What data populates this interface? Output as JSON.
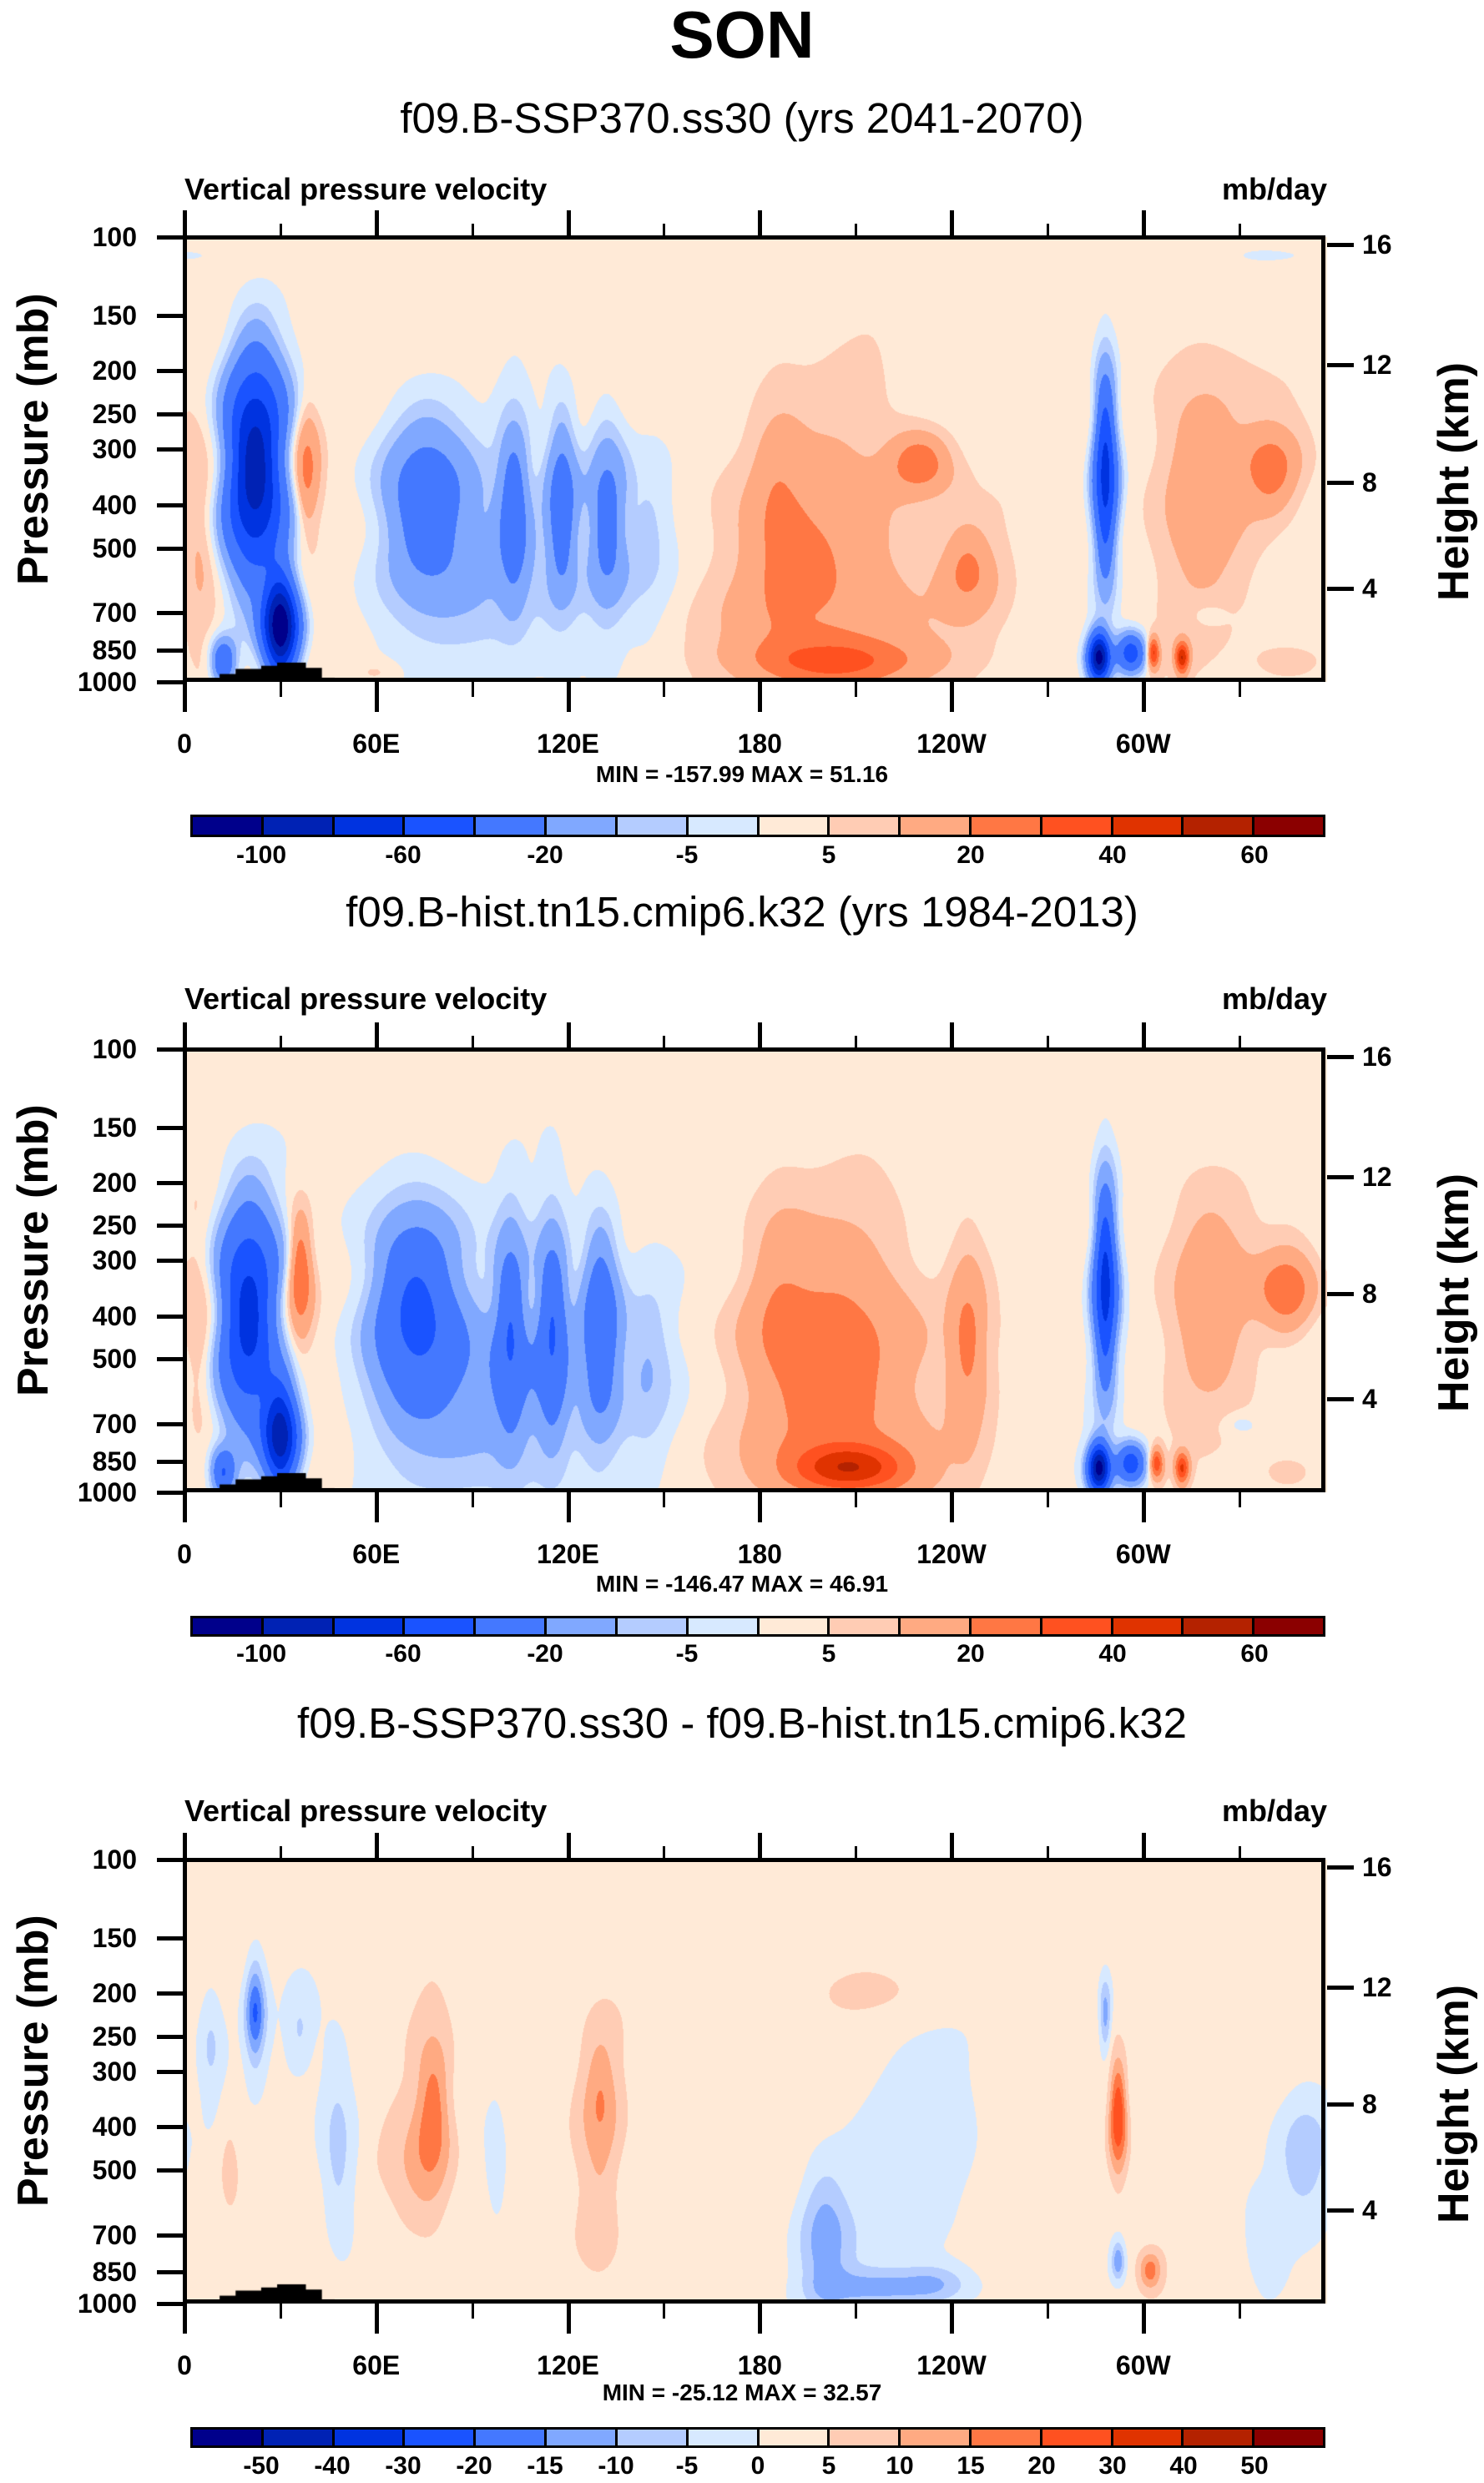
{
  "figure": {
    "title": "SON"
  },
  "colormaps": {
    "colors": [
      "#00008B",
      "#0022B4",
      "#0033E0",
      "#1A53FF",
      "#4478FF",
      "#80A8FF",
      "#B4CCFF",
      "#D7E9FF",
      "#FFEAD7",
      "#FFCCB4",
      "#FFAA82",
      "#FF7744",
      "#FF5120",
      "#E03300",
      "#B42200",
      "#8B0000"
    ],
    "land_color": "#000000"
  },
  "chart_data": [
    {
      "type": "heatmap",
      "panel": "top",
      "title": "f09.B-SSP370.ss30 (yrs 2041-2070)",
      "left_string": "Vertical pressure velocity",
      "right_string": "mb/day",
      "ylabel": "Pressure (mb)",
      "ylabel_right": "Height (km)",
      "x_range": [
        0,
        357.5
      ],
      "y_range_mb": [
        1000,
        100
      ],
      "y_scale": "log",
      "x_ticks": [
        {
          "lon": 0,
          "label": "0"
        },
        {
          "lon": 60,
          "label": "60E"
        },
        {
          "lon": 120,
          "label": "120E"
        },
        {
          "lon": 180,
          "label": "180"
        },
        {
          "lon": 240,
          "label": "120W"
        },
        {
          "lon": 300,
          "label": "60W"
        }
      ],
      "x_minor_ticks": [
        30,
        90,
        150,
        210,
        270,
        330
      ],
      "y_ticks": [
        100,
        150,
        200,
        250,
        300,
        400,
        500,
        700,
        850,
        1000
      ],
      "y_ticks_right": [
        {
          "km": 16,
          "mb": 104
        },
        {
          "km": 12,
          "mb": 194
        },
        {
          "km": 8,
          "mb": 356
        },
        {
          "km": 4,
          "mb": 616
        }
      ],
      "min_max_text": "MIN = -157.99  MAX =  51.16",
      "levels": [
        -100,
        -80,
        -60,
        -40,
        -20,
        -10,
        -5,
        0,
        5,
        10,
        20,
        30,
        40,
        50,
        60
      ],
      "colorbar_labels": [
        {
          "after_box": 1,
          "text": "-100"
        },
        {
          "after_box": 3,
          "text": "-60"
        },
        {
          "after_box": 5,
          "text": "-20"
        },
        {
          "after_box": 7,
          "text": "-5"
        },
        {
          "after_box": 9,
          "text": "5"
        },
        {
          "after_box": 11,
          "text": "20"
        },
        {
          "after_box": 13,
          "text": "40"
        },
        {
          "after_box": 15,
          "text": "60"
        }
      ],
      "background": 3,
      "features": [
        [
          22,
          330,
          -95,
          9,
          0.55
        ],
        [
          30,
          750,
          -120,
          5,
          0.25
        ],
        [
          12,
          900,
          -40,
          4,
          0.12
        ],
        [
          38,
          330,
          22,
          4,
          0.32
        ],
        [
          5,
          500,
          10,
          6,
          0.6
        ],
        [
          75,
          380,
          -30,
          14,
          0.45
        ],
        [
          103,
          400,
          -28,
          5,
          0.45
        ],
        [
          118,
          400,
          -32,
          5,
          0.45
        ],
        [
          132,
          420,
          -30,
          6,
          0.45
        ],
        [
          95,
          600,
          -12,
          30,
          0.5
        ],
        [
          145,
          450,
          -8,
          8,
          0.5
        ],
        [
          200,
          600,
          18,
          28,
          0.7
        ],
        [
          230,
          320,
          24,
          10,
          0.15
        ],
        [
          245,
          560,
          18,
          8,
          0.22
        ],
        [
          205,
          900,
          22,
          24,
          0.12
        ],
        [
          185,
          400,
          8,
          8,
          0.6
        ],
        [
          288,
          340,
          -70,
          3.5,
          0.5
        ],
        [
          286,
          880,
          -110,
          3,
          0.12
        ],
        [
          296,
          860,
          -55,
          5,
          0.1
        ],
        [
          303,
          860,
          40,
          2,
          0.08
        ],
        [
          312,
          880,
          45,
          2,
          0.08
        ],
        [
          340,
          330,
          22,
          8,
          0.2
        ],
        [
          318,
          350,
          14,
          14,
          0.6
        ],
        [
          320,
          700,
          -4,
          6,
          0.08
        ],
        [
          345,
          900,
          8,
          10,
          0.08
        ],
        [
          60,
          950,
          5,
          6,
          0.06
        ],
        [
          345,
          110,
          -3,
          20,
          0.05
        ],
        [
          5,
          110,
          -3,
          10,
          0.05
        ]
      ],
      "land": [
        [
          15,
          960
        ],
        [
          20,
          935
        ],
        [
          28,
          920
        ],
        [
          33,
          905
        ],
        [
          38,
          930
        ],
        [
          42,
          980
        ],
        [
          101,
          985
        ],
        [
          285,
          985
        ],
        [
          295,
          990
        ],
        [
          305,
          990
        ],
        [
          310,
          995
        ]
      ]
    },
    {
      "type": "heatmap",
      "panel": "middle",
      "title": "f09.B-hist.tn15.cmip6.k32 (yrs 1984-2013)",
      "left_string": "Vertical pressure velocity",
      "right_string": "mb/day",
      "ylabel": "Pressure (mb)",
      "ylabel_right": "Height (km)",
      "x_range": [
        0,
        357.5
      ],
      "y_range_mb": [
        1000,
        100
      ],
      "y_scale": "log",
      "x_ticks": [
        {
          "lon": 0,
          "label": "0"
        },
        {
          "lon": 60,
          "label": "60E"
        },
        {
          "lon": 120,
          "label": "120E"
        },
        {
          "lon": 180,
          "label": "180"
        },
        {
          "lon": 240,
          "label": "120W"
        },
        {
          "lon": 300,
          "label": "60W"
        }
      ],
      "x_minor_ticks": [
        30,
        90,
        150,
        210,
        270,
        330
      ],
      "y_ticks": [
        100,
        150,
        200,
        250,
        300,
        400,
        500,
        700,
        850,
        1000
      ],
      "y_ticks_right": [
        {
          "km": 16,
          "mb": 104
        },
        {
          "km": 12,
          "mb": 194
        },
        {
          "km": 8,
          "mb": 356
        },
        {
          "km": 4,
          "mb": 616
        }
      ],
      "min_max_text": "MIN = -146.47  MAX =  46.91",
      "levels": [
        -100,
        -80,
        -60,
        -40,
        -20,
        -10,
        -5,
        0,
        5,
        10,
        20,
        30,
        40,
        50,
        60
      ],
      "colorbar_labels": [
        {
          "after_box": 1,
          "text": "-100"
        },
        {
          "after_box": 3,
          "text": "-60"
        },
        {
          "after_box": 5,
          "text": "-20"
        },
        {
          "after_box": 7,
          "text": "-5"
        },
        {
          "after_box": 9,
          "text": "5"
        },
        {
          "after_box": 11,
          "text": "20"
        },
        {
          "after_box": 13,
          "text": "40"
        },
        {
          "after_box": 15,
          "text": "60"
        }
      ],
      "background": 2,
      "features": [
        [
          20,
          400,
          -70,
          9,
          0.55
        ],
        [
          30,
          750,
          -95,
          5,
          0.25
        ],
        [
          12,
          900,
          -40,
          4,
          0.12
        ],
        [
          36,
          320,
          30,
          4,
          0.32
        ],
        [
          5,
          450,
          10,
          5,
          0.6
        ],
        [
          72,
          380,
          -45,
          14,
          0.5
        ],
        [
          102,
          420,
          -35,
          5,
          0.5
        ],
        [
          115,
          420,
          -40,
          5,
          0.5
        ],
        [
          130,
          420,
          -38,
          6,
          0.5
        ],
        [
          95,
          650,
          -15,
          30,
          0.5
        ],
        [
          145,
          500,
          -10,
          8,
          0.5
        ],
        [
          205,
          550,
          25,
          26,
          0.7
        ],
        [
          208,
          880,
          35,
          20,
          0.12
        ],
        [
          185,
          350,
          8,
          10,
          0.6
        ],
        [
          245,
          450,
          18,
          6,
          0.5
        ],
        [
          288,
          340,
          -70,
          3.5,
          0.5
        ],
        [
          286,
          880,
          -110,
          3,
          0.12
        ],
        [
          296,
          860,
          -55,
          5,
          0.1
        ],
        [
          304,
          860,
          35,
          2,
          0.08
        ],
        [
          312,
          880,
          38,
          2,
          0.08
        ],
        [
          345,
          350,
          25,
          8,
          0.2
        ],
        [
          320,
          350,
          14,
          14,
          0.6
        ],
        [
          330,
          700,
          -6,
          6,
          0.06
        ],
        [
          345,
          900,
          8,
          8,
          0.08
        ]
      ],
      "land": [
        [
          15,
          960
        ],
        [
          20,
          935
        ],
        [
          28,
          920
        ],
        [
          33,
          905
        ],
        [
          38,
          930
        ],
        [
          42,
          980
        ],
        [
          101,
          985
        ],
        [
          285,
          985
        ],
        [
          295,
          990
        ],
        [
          305,
          990
        ],
        [
          310,
          995
        ]
      ]
    },
    {
      "type": "heatmap",
      "panel": "bottom",
      "title": "f09.B-SSP370.ss30 - f09.B-hist.tn15.cmip6.k32",
      "left_string": "Vertical pressure velocity",
      "right_string": "mb/day",
      "ylabel": "Pressure (mb)",
      "ylabel_right": "Height (km)",
      "x_range": [
        0,
        357.5
      ],
      "y_range_mb": [
        1000,
        100
      ],
      "y_scale": "log",
      "x_ticks": [
        {
          "lon": 0,
          "label": "0"
        },
        {
          "lon": 60,
          "label": "60E"
        },
        {
          "lon": 120,
          "label": "120E"
        },
        {
          "lon": 180,
          "label": "180"
        },
        {
          "lon": 240,
          "label": "120W"
        },
        {
          "lon": 300,
          "label": "60W"
        }
      ],
      "x_minor_ticks": [
        30,
        90,
        150,
        210,
        270,
        330
      ],
      "y_ticks": [
        100,
        150,
        200,
        250,
        300,
        400,
        500,
        700,
        850,
        1000
      ],
      "y_ticks_right": [
        {
          "km": 16,
          "mb": 104
        },
        {
          "km": 12,
          "mb": 194
        },
        {
          "km": 8,
          "mb": 356
        },
        {
          "km": 4,
          "mb": 616
        }
      ],
      "min_max_text": "MIN = -25.12  MAX =  32.57",
      "levels": [
        -50,
        -40,
        -30,
        -20,
        -15,
        -10,
        -5,
        0,
        5,
        10,
        15,
        20,
        30,
        40,
        50
      ],
      "colorbar_labels": [
        {
          "after_box": 1,
          "text": "-50"
        },
        {
          "after_box": 2,
          "text": "-40"
        },
        {
          "after_box": 3,
          "text": "-30"
        },
        {
          "after_box": 4,
          "text": "-20"
        },
        {
          "after_box": 5,
          "text": "-15"
        },
        {
          "after_box": 6,
          "text": "-10"
        },
        {
          "after_box": 7,
          "text": "-5"
        },
        {
          "after_box": 8,
          "text": "0"
        },
        {
          "after_box": 9,
          "text": "5"
        },
        {
          "after_box": 10,
          "text": "10"
        },
        {
          "after_box": 11,
          "text": "15"
        },
        {
          "after_box": 12,
          "text": "20"
        },
        {
          "after_box": 13,
          "text": "30"
        },
        {
          "after_box": 14,
          "text": "40"
        },
        {
          "after_box": 15,
          "text": "50"
        }
      ],
      "background": 2,
      "features": [
        [
          22,
          220,
          -22,
          3,
          0.25
        ],
        [
          8,
          260,
          -8,
          4,
          0.3
        ],
        [
          36,
          240,
          -6,
          4,
          0.2
        ],
        [
          14,
          500,
          6,
          4,
          0.3
        ],
        [
          48,
          440,
          -10,
          6,
          0.5
        ],
        [
          78,
          360,
          14,
          6,
          0.45
        ],
        [
          72,
          500,
          8,
          10,
          0.4
        ],
        [
          130,
          360,
          12,
          6,
          0.4
        ],
        [
          130,
          700,
          6,
          8,
          0.3
        ],
        [
          98,
          550,
          -3,
          5,
          0.4
        ],
        [
          200,
          700,
          -14,
          8,
          0.35
        ],
        [
          215,
          920,
          -12,
          18,
          0.1
        ],
        [
          235,
          900,
          -10,
          10,
          0.1
        ],
        [
          230,
          500,
          -5,
          22,
          0.6
        ],
        [
          220,
          200,
          3,
          30,
          0.15
        ],
        [
          288,
          220,
          -15,
          2,
          0.2
        ],
        [
          292,
          380,
          25,
          3,
          0.3
        ],
        [
          292,
          800,
          -16,
          2,
          0.1
        ],
        [
          302,
          840,
          15,
          4,
          0.1
        ],
        [
          350,
          450,
          -10,
          8,
          0.3
        ],
        [
          335,
          600,
          -3,
          10,
          0.4
        ],
        [
          160,
          300,
          2,
          20,
          0.5
        ]
      ],
      "land": [
        [
          15,
          960
        ],
        [
          20,
          935
        ],
        [
          28,
          920
        ],
        [
          33,
          905
        ],
        [
          38,
          930
        ],
        [
          42,
          980
        ],
        [
          101,
          985
        ],
        [
          285,
          985
        ],
        [
          295,
          990
        ],
        [
          305,
          990
        ],
        [
          310,
          995
        ]
      ]
    }
  ],
  "panels_text": {
    "minmax_prefix": ""
  }
}
